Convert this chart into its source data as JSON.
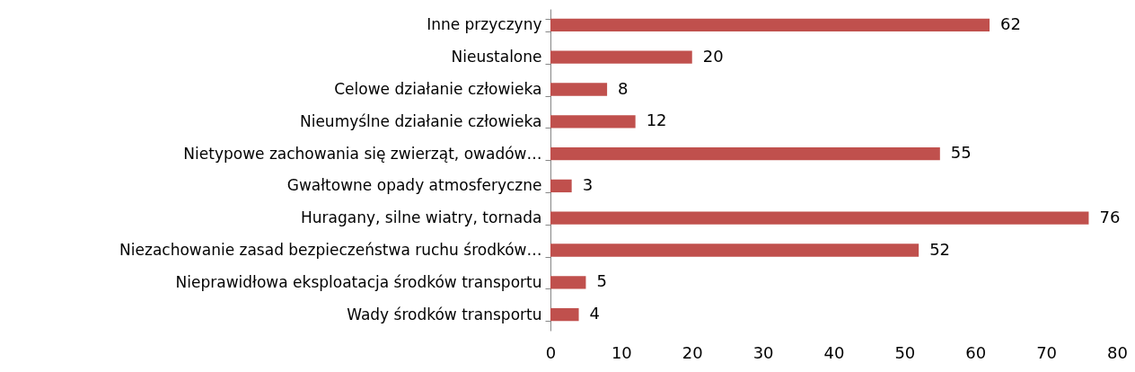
{
  "chart_data": {
    "type": "bar",
    "orientation": "horizontal",
    "categories": [
      "Inne przyczyny",
      "Nieustalone",
      "Celowe działanie człowieka",
      "Nieumyślne działanie człowieka",
      "Nietypowe zachowania się zwierząt, owadów…",
      "Gwałtowne opady atmosferyczne",
      "Huragany, silne wiatry, tornada",
      "Niezachowanie zasad bezpieczeństwa ruchu środków…",
      "Nieprawidłowa eksploatacja środków transportu",
      "Wady środków transportu"
    ],
    "values": [
      62,
      20,
      8,
      12,
      55,
      3,
      76,
      52,
      5,
      4
    ],
    "color": "#c0504d",
    "xlim": [
      0,
      80
    ],
    "xticks": [
      0,
      10,
      20,
      30,
      40,
      50,
      60,
      70,
      80
    ],
    "data_labels": true,
    "grid": false
  }
}
